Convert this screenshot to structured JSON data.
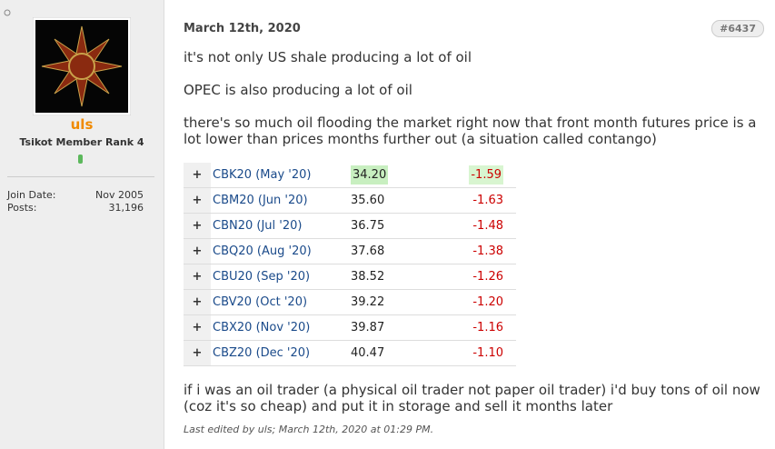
{
  "user": {
    "name": "uls",
    "rank": "Tsikot Member Rank 4",
    "join_date_label": "Join Date:",
    "join_date": "Nov 2005",
    "posts_label": "Posts:",
    "posts": "31,196"
  },
  "post": {
    "date": "March 12th, 2020",
    "number": "#6437",
    "paragraphs": [
      "it's not only US shale producing a lot of oil",
      "OPEC is also producing a lot of oil",
      "there's so much oil flooding the market right now that front month futures price is a lot lower than prices months further out (a situation called contango)"
    ],
    "table": {
      "rows": [
        [
          "+",
          "CBK20 (May '20)",
          "34.20",
          "-1.59"
        ],
        [
          "+",
          "CBM20 (Jun '20)",
          "35.60",
          "-1.63"
        ],
        [
          "+",
          "CBN20 (Jul '20)",
          "36.75",
          "-1.48"
        ],
        [
          "+",
          "CBQ20 (Aug '20)",
          "37.68",
          "-1.38"
        ],
        [
          "+",
          "CBU20 (Sep '20)",
          "38.52",
          "-1.26"
        ],
        [
          "+",
          "CBV20 (Oct '20)",
          "39.22",
          "-1.20"
        ],
        [
          "+",
          "CBX20 (Nov '20)",
          "39.87",
          "-1.16"
        ],
        [
          "+",
          "CBZ20 (Dec '20)",
          "40.47",
          "-1.10"
        ]
      ]
    },
    "closing": "if i was an oil trader (a physical oil trader not paper oil trader) i'd buy tons of oil now (coz it's so cheap) and put it in storage and sell it months later",
    "edit_note": "Last edited by uls; March 12th, 2020 at 01:29 PM."
  }
}
